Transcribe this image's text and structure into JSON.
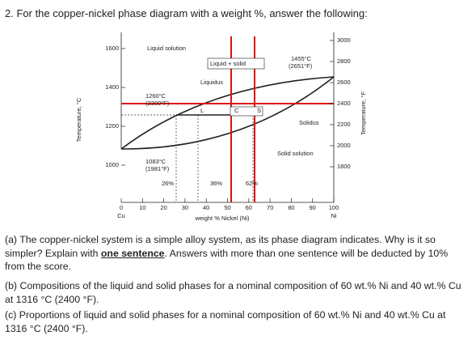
{
  "title": "2. For the copper-nickel phase diagram with a weight %, answer the following:",
  "figure": {
    "x_ticks": [
      0,
      10,
      20,
      30,
      40,
      50,
      60,
      70,
      80,
      90,
      100
    ],
    "x_end_left": "Cu",
    "x_end_right": "Ni",
    "x_label": "weight % Nickel (Ni)",
    "y_ticks_c": [
      1000,
      1200,
      1400,
      1600
    ],
    "y_ticks_f": [
      1800,
      2000,
      2200,
      2400,
      2600,
      2800,
      3000
    ],
    "y_label_left": "Temperature, °C",
    "y_label_right": "Temperature, °F",
    "labels": {
      "liquid_solution": "Liquid solution",
      "liquid_solid": "Liquid + solid",
      "liquidus": "Liquidus",
      "ni_melt_c": "1455°C",
      "ni_melt_f": "(2651°F)",
      "tie_c": "1260°C",
      "tie_f": "(2300°F)",
      "l": "L",
      "c": "C",
      "s": "S",
      "solidus": "Solidus",
      "solid_solution": "Solid solution",
      "cu_melt_c": "1083°C",
      "cu_melt_f": "(1981°F)",
      "p26": "26%",
      "p36": "36%",
      "p62": "62%"
    }
  },
  "questions": [
    {
      "before": "(a) The copper-nickel system is a simple alloy system, as its phase diagram indicates. Why is it so simpler? Explain with ",
      "emph": "one sentence",
      "after": ". Answers with more than one sentence will be deducted by 10% from the score."
    },
    {
      "before": "(b) Compositions of the liquid and solid phases for a nominal composition of 60 wt.% Ni and 40 wt.% Cu at 1316 °C (2400 °F).",
      "emph": "",
      "after": ""
    },
    {
      "before": "(c) Proportions of liquid and solid phases for a nominal composition of 60 wt.% Ni and 40 wt.% Cu at 1316 °C (2400 °F).",
      "emph": "",
      "after": ""
    }
  ]
}
